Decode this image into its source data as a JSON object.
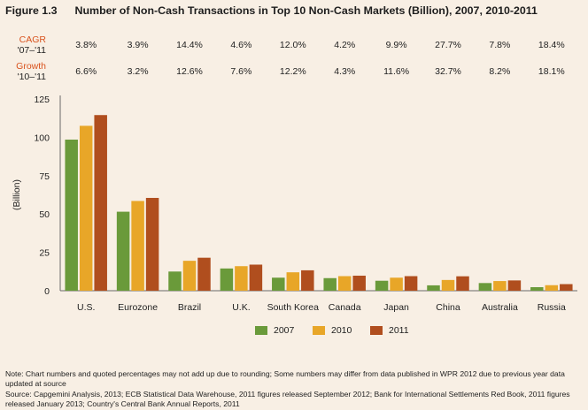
{
  "figure": {
    "number": "Figure 1.3",
    "title": "Number of Non-Cash Transactions in Top 10 Non-Cash Markets (Billion), 2007, 2010-2011"
  },
  "stats": {
    "cagr_label": "CAGR",
    "cagr_period": "'07–'11",
    "growth_label": "Growth",
    "growth_period": "'10–'11",
    "cagr_values": [
      "3.8%",
      "3.9%",
      "14.4%",
      "4.6%",
      "12.0%",
      "4.2%",
      "9.9%",
      "27.7%",
      "7.8%",
      "18.4%"
    ],
    "growth_values": [
      "6.6%",
      "3.2%",
      "12.6%",
      "7.6%",
      "12.2%",
      "4.3%",
      "11.6%",
      "32.7%",
      "8.2%",
      "18.1%"
    ]
  },
  "colors": {
    "2007": "#6a9a3a",
    "2010": "#e8a628",
    "2011": "#b04e1e",
    "accent": "#d9531e",
    "background": "#f8efe4"
  },
  "chart_data": {
    "type": "bar",
    "ylabel": "(Billion)",
    "xlabel": "",
    "ylim": [
      0,
      125
    ],
    "yticks": [
      0,
      25,
      50,
      75,
      100,
      125
    ],
    "grid": false,
    "legend_position": "bottom",
    "categories": [
      "U.S.",
      "Eurozone",
      "Brazil",
      "U.K.",
      "South Korea",
      "Canada",
      "Japan",
      "China",
      "Australia",
      "Russia"
    ],
    "series": [
      {
        "name": "2007",
        "values": [
          98.5,
          51.5,
          12.5,
          14.5,
          8.5,
          8.2,
          6.5,
          3.5,
          5.0,
          2.3
        ]
      },
      {
        "name": "2010",
        "values": [
          107.5,
          58.5,
          19.5,
          16.0,
          12.0,
          9.5,
          8.5,
          7.0,
          6.3,
          3.6
        ]
      },
      {
        "name": "2011",
        "values": [
          114.5,
          60.5,
          21.5,
          17.0,
          13.3,
          9.8,
          9.5,
          9.4,
          6.7,
          4.3
        ]
      }
    ]
  },
  "notes": {
    "note": "Note: Chart numbers and quoted percentages may not add up due to rounding; Some numbers may differ from data published in WPR 2012 due to previous year data updated at source",
    "source": "Source: Capgemini Analysis, 2013; ECB Statistical Data Warehouse, 2011 figures released September 2012; Bank for International Settlements Red Book, 2011 figures released January 2013; Country's Central Bank Annual Reports, 2011"
  }
}
